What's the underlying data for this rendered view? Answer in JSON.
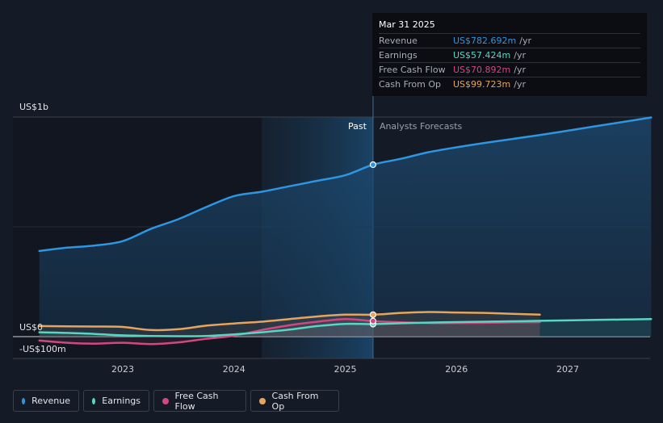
{
  "chart_data": {
    "type": "line",
    "title": "",
    "xlabel": "",
    "ylabel": "",
    "y_unit_labels": [
      "US$1b",
      "US$0",
      "-US$100m"
    ],
    "y_tick_values": [
      1000,
      0,
      -100
    ],
    "ylim": [
      -100,
      1000
    ],
    "xlim": [
      2022.25,
      2027.75
    ],
    "x_ticks": [
      2023,
      2024,
      2025,
      2026,
      2027
    ],
    "x_tick_labels": [
      "2023",
      "2024",
      "2025",
      "2026",
      "2027"
    ],
    "past_label": "Past",
    "forecast_label": "Analysts Forecasts",
    "forecast_start": 2025.25,
    "highlight_start": 2024.25,
    "grid": true,
    "series": [
      {
        "name": "Revenue",
        "color": "#2e95e0",
        "x": [
          2022.25,
          2022.5,
          2022.75,
          2023.0,
          2023.25,
          2023.5,
          2023.75,
          2024.0,
          2024.25,
          2024.5,
          2024.75,
          2025.0,
          2025.25,
          2025.5,
          2025.75,
          2026.0,
          2026.25,
          2026.5,
          2026.75,
          2027.0,
          2027.25,
          2027.5,
          2027.75
        ],
        "values": [
          390,
          405,
          415,
          435,
          490,
          535,
          590,
          640,
          660,
          685,
          710,
          735,
          783,
          810,
          840,
          862,
          882,
          900,
          918,
          938,
          958,
          978,
          998
        ]
      },
      {
        "name": "Earnings",
        "color": "#58d6c4",
        "x": [
          2022.25,
          2022.5,
          2022.75,
          2023.0,
          2023.25,
          2023.5,
          2023.75,
          2024.0,
          2024.25,
          2024.5,
          2024.75,
          2025.0,
          2025.25,
          2025.5,
          2025.75,
          2026.0,
          2026.25,
          2026.5,
          2026.75,
          2027.0,
          2027.25,
          2027.5,
          2027.75
        ],
        "values": [
          20,
          17,
          12,
          6,
          3,
          2,
          3,
          10,
          20,
          32,
          48,
          58,
          57,
          61,
          64,
          66,
          68,
          70,
          72,
          74,
          76,
          78,
          80
        ]
      },
      {
        "name": "Free Cash Flow",
        "color": "#d0487f",
        "x": [
          2022.25,
          2022.5,
          2022.75,
          2023.0,
          2023.25,
          2023.5,
          2023.75,
          2024.0,
          2024.25,
          2024.5,
          2024.75,
          2025.0,
          2025.25,
          2025.5,
          2025.75,
          2026.0,
          2026.25,
          2026.5,
          2026.75
        ],
        "values": [
          -18,
          -28,
          -32,
          -28,
          -34,
          -26,
          -10,
          4,
          30,
          52,
          68,
          80,
          71,
          65,
          62,
          62,
          63,
          65,
          66
        ]
      },
      {
        "name": "Cash From Op",
        "color": "#e6a45e",
        "x": [
          2022.25,
          2022.5,
          2022.75,
          2023.0,
          2023.25,
          2023.5,
          2023.75,
          2024.0,
          2024.25,
          2024.5,
          2024.75,
          2025.0,
          2025.25,
          2025.5,
          2025.75,
          2026.0,
          2026.25,
          2026.5,
          2026.75
        ],
        "values": [
          48,
          47,
          46,
          44,
          30,
          34,
          50,
          60,
          68,
          80,
          92,
          100,
          100,
          108,
          112,
          110,
          108,
          104,
          100
        ]
      }
    ]
  },
  "tooltip": {
    "date": "Mar 31 2025",
    "rows": [
      {
        "name": "Revenue",
        "value": "US$782.692m",
        "unit": "/yr",
        "color": "#2e95e0"
      },
      {
        "name": "Earnings",
        "value": "US$57.424m",
        "unit": "/yr",
        "color": "#58d6c4"
      },
      {
        "name": "Free Cash Flow",
        "value": "US$70.892m",
        "unit": "/yr",
        "color": "#d0487f"
      },
      {
        "name": "Cash From Op",
        "value": "US$99.723m",
        "unit": "/yr",
        "color": "#e6a45e"
      }
    ]
  },
  "legend": [
    {
      "label": "Revenue",
      "color": "#2e95e0"
    },
    {
      "label": "Earnings",
      "color": "#58d6c4"
    },
    {
      "label": "Free Cash Flow",
      "color": "#d0487f"
    },
    {
      "label": "Cash From Op",
      "color": "#e6a45e"
    }
  ]
}
